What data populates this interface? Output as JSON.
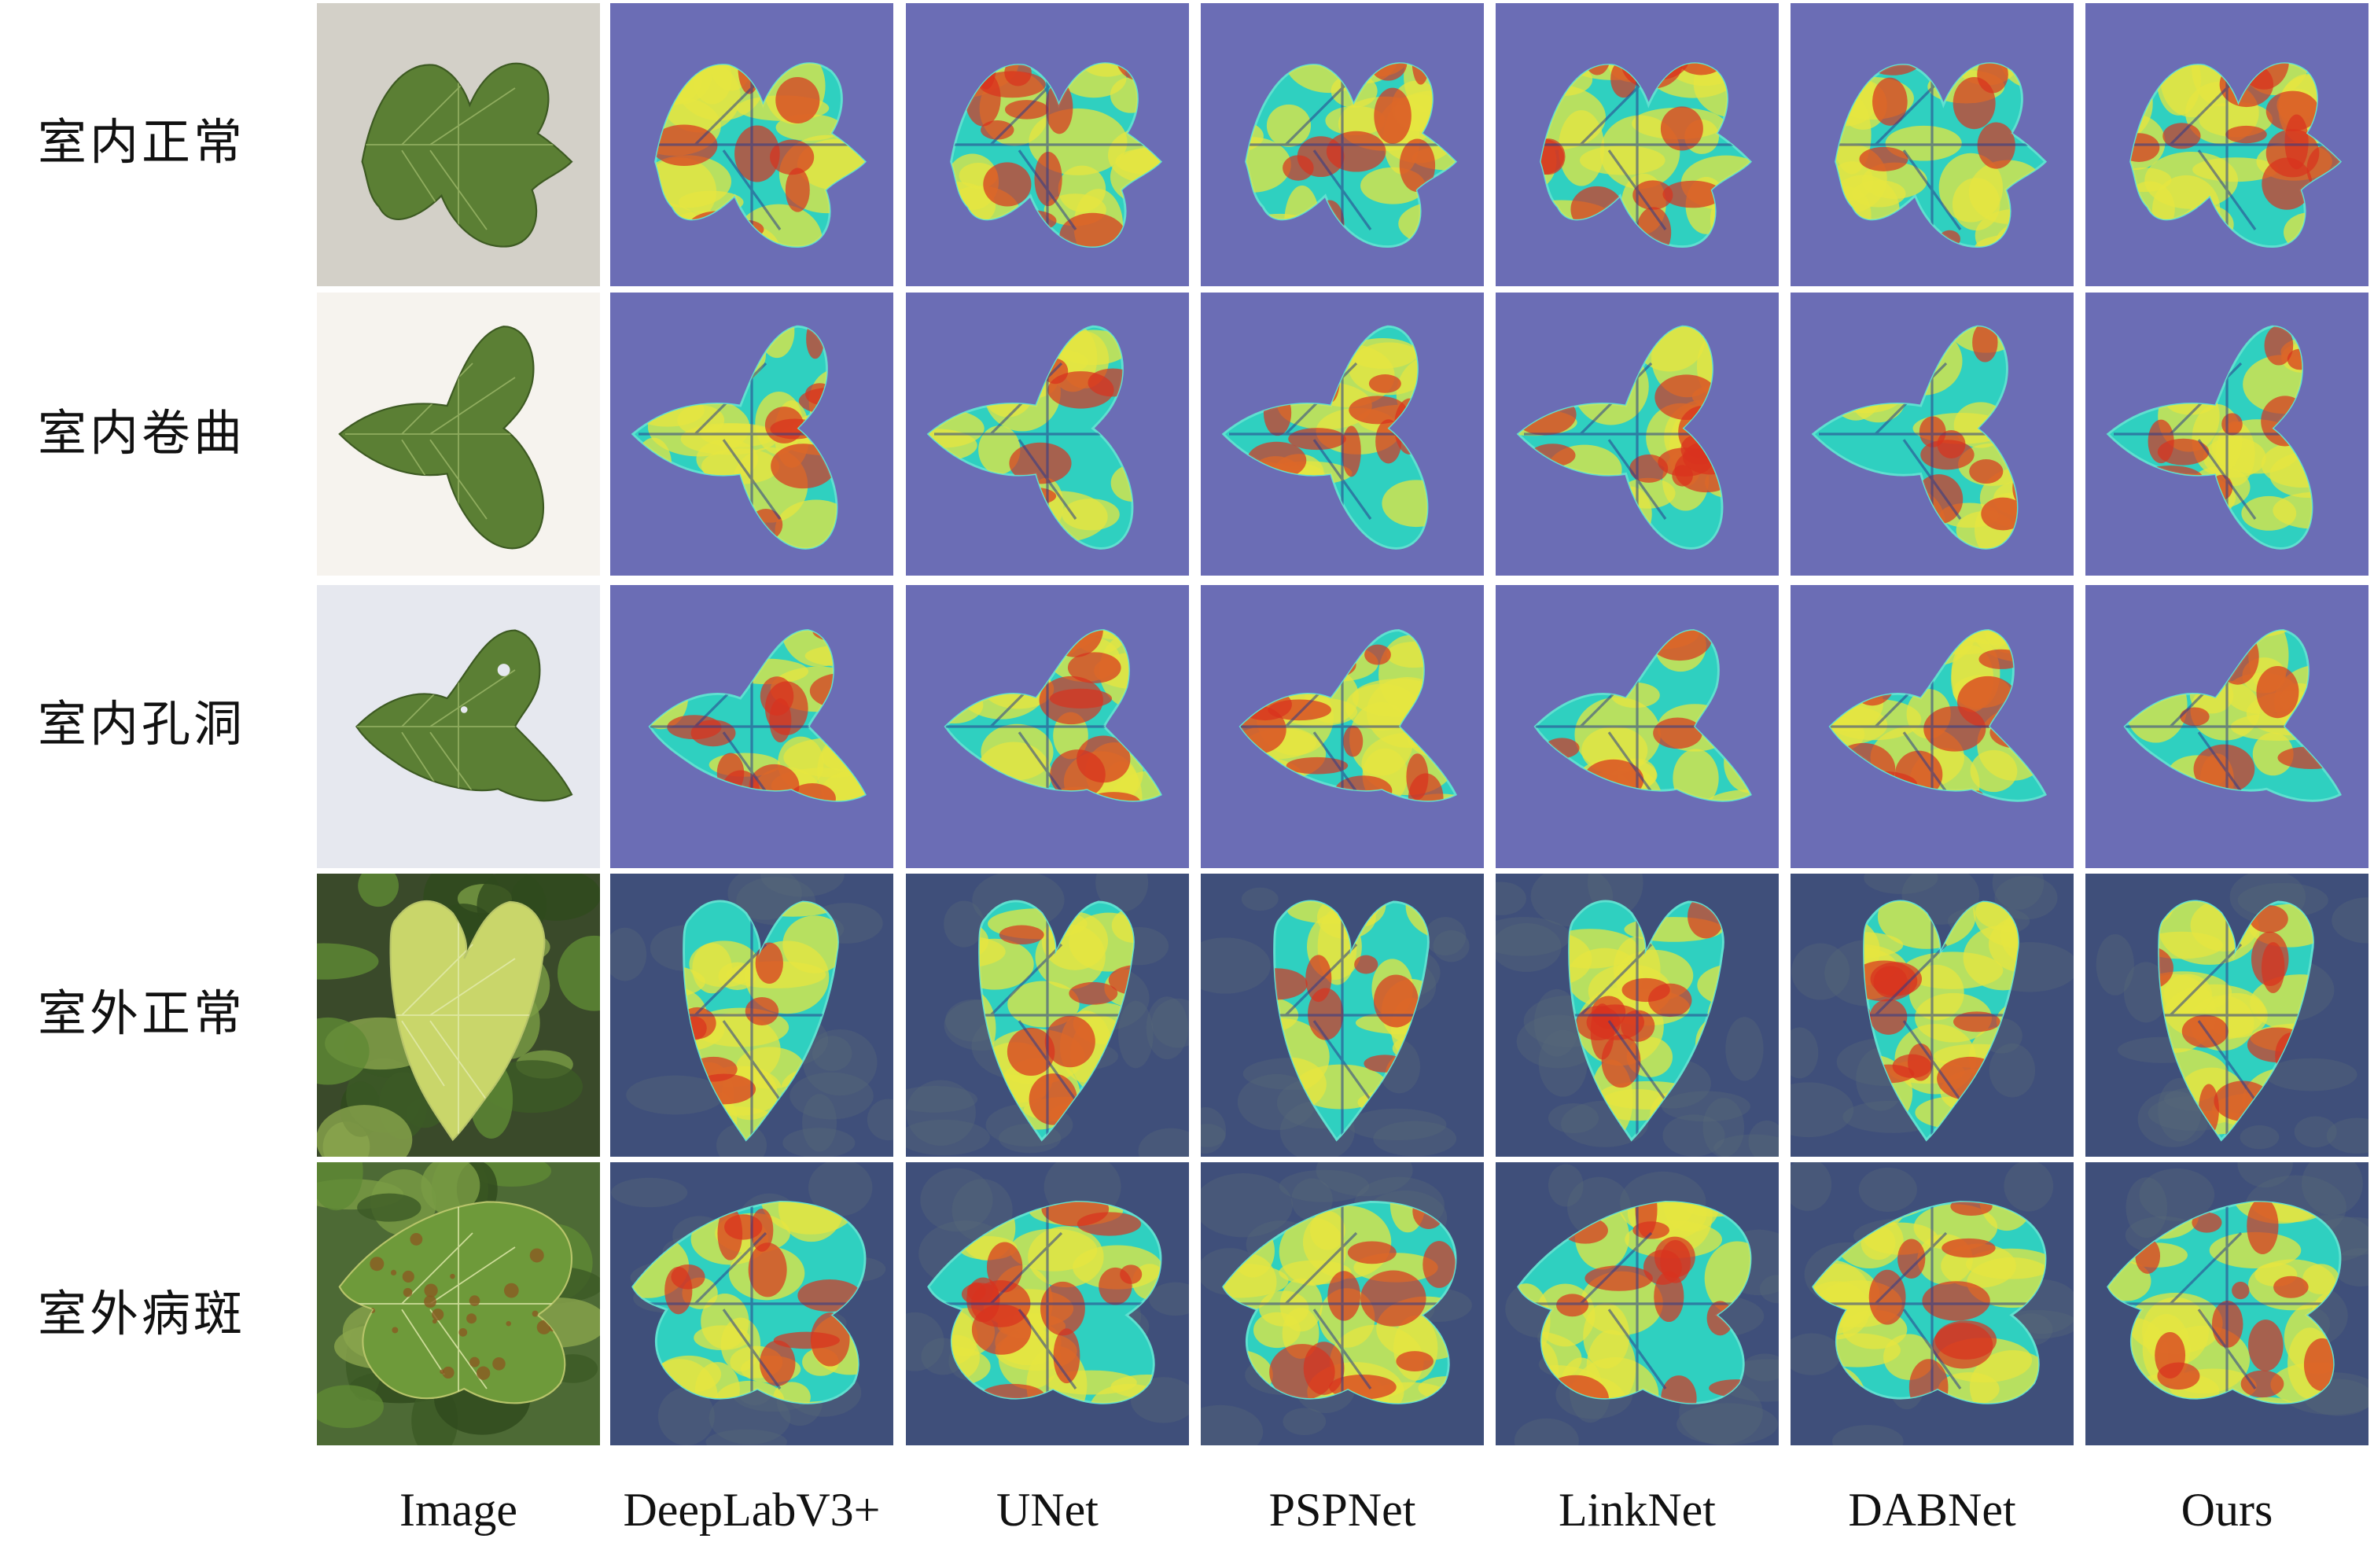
{
  "rows": [
    {
      "label": "室内正常",
      "scene": "indoor",
      "bg": "#d3d0c8"
    },
    {
      "label": "室内卷曲",
      "scene": "indoor",
      "bg": "#f6f3ee"
    },
    {
      "label": "室内孔洞",
      "scene": "indoor",
      "bg": "#e6e8ef"
    },
    {
      "label": "室外正常",
      "scene": "outdoor",
      "bg": "#3a4a2a"
    },
    {
      "label": "室外病斑",
      "scene": "outdoor",
      "bg": "#4d6a35"
    }
  ],
  "columns": [
    {
      "label": "Image",
      "kind": "image"
    },
    {
      "label": "DeepLabV3+",
      "kind": "heatmap"
    },
    {
      "label": "UNet",
      "kind": "heatmap"
    },
    {
      "label": "PSPNet",
      "kind": "heatmap"
    },
    {
      "label": "LinkNet",
      "kind": "heatmap"
    },
    {
      "label": "DABNet",
      "kind": "heatmap"
    },
    {
      "label": "Ours",
      "kind": "heatmap"
    }
  ],
  "colors": {
    "heatmap_bg_indoor": "#6b6db5",
    "heatmap_bg_outdoor": "#3f4f7a",
    "leaf_green": "#5b7f34",
    "leaf_outdoor_light": "#c9d66a",
    "heat_low": "#2fd0c0",
    "heat_mid": "#e6e640",
    "heat_high": "#d8321e"
  },
  "icons": [
    "leaf-image",
    "heatmap-overlay"
  ]
}
